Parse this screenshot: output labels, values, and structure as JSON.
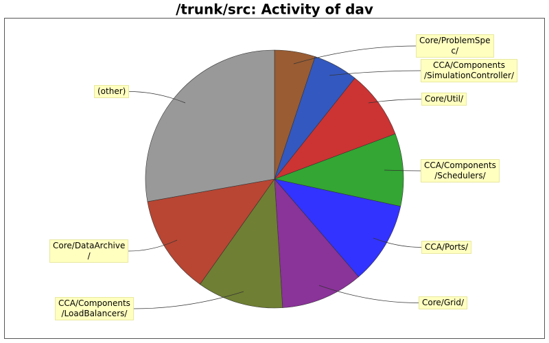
{
  "chart_data": {
    "type": "pie",
    "title": "/trunk/src: Activity of dav",
    "categories": [
      "Core/ProblemSpe\nc/",
      "CCA/Components\n/SimulationController/",
      "Core/Util/",
      "CCA/Components\n/Schedulers/",
      "CCA/Ports/",
      "Core/Grid/",
      "CCA/Components\n/LoadBalancers/",
      "Core/DataArchive\n/",
      "(other)"
    ],
    "values": [
      5.1,
      5.6,
      8.6,
      9.1,
      10.3,
      10.3,
      10.8,
      12.4,
      27.8
    ],
    "colors": [
      "#995c33",
      "#3358bf",
      "#cc3333",
      "#33a633",
      "#3333ff",
      "#8a3399",
      "#6f7f33",
      "#b84633",
      "#999999"
    ]
  }
}
